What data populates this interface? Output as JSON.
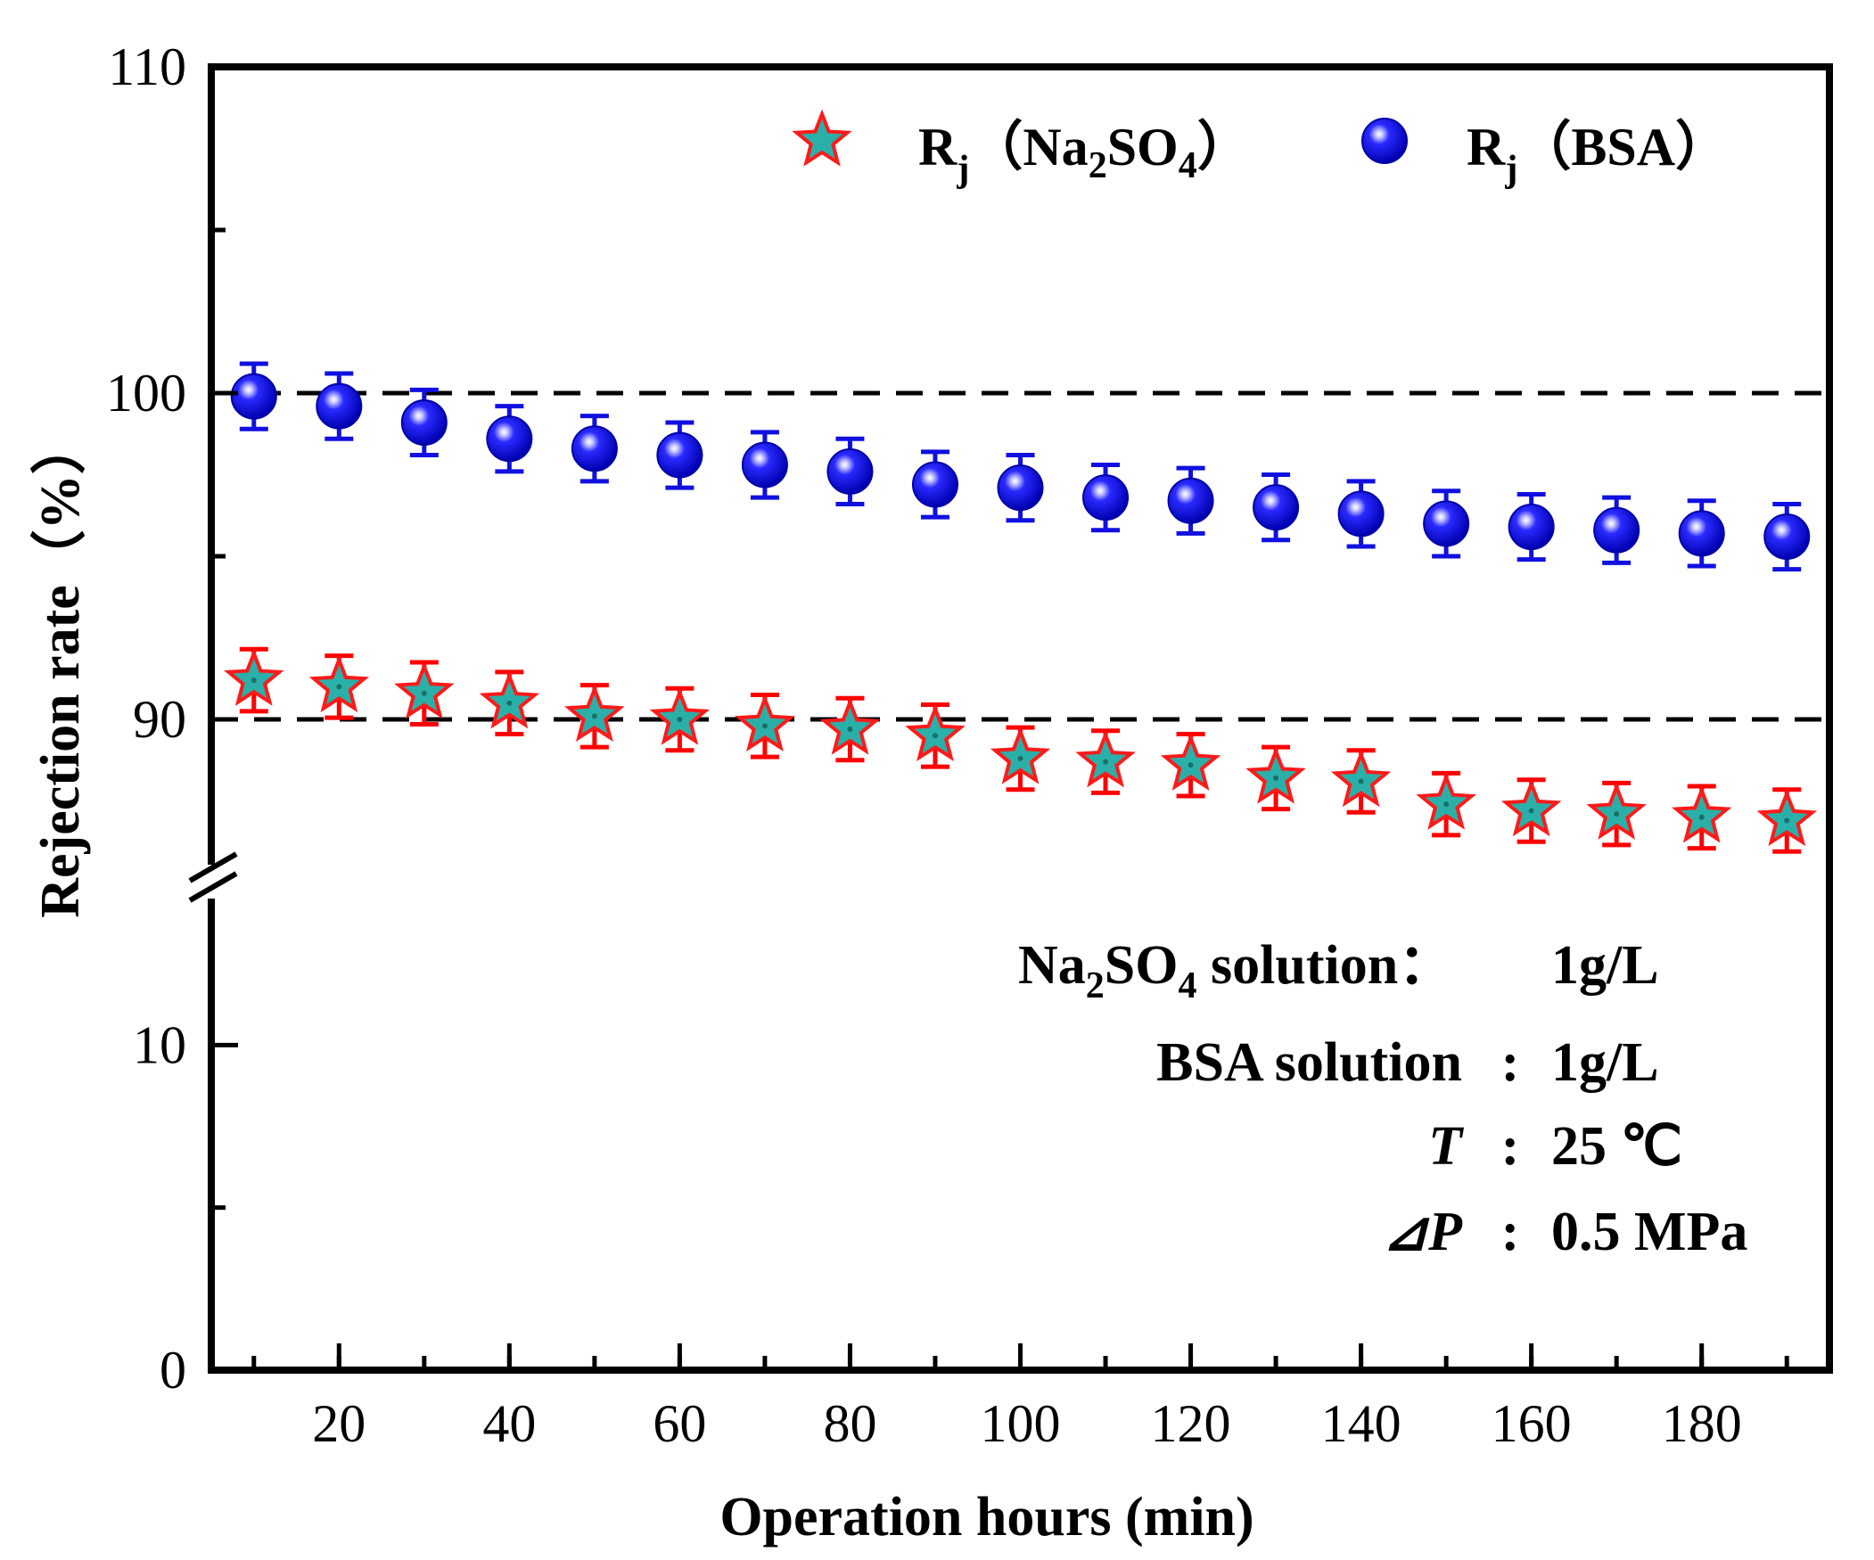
{
  "chart_data": {
    "type": "scatter",
    "title": "",
    "xlabel": "Operation hours (min)",
    "ylabel": "Rejection rate（%）",
    "xlim": [
      5,
      195
    ],
    "ylim_lower": [
      0,
      15
    ],
    "ylim_upper": [
      85,
      110
    ],
    "axis_break": true,
    "x_ticks": [
      "20",
      "40",
      "60",
      "80",
      "100",
      "120",
      "140",
      "160",
      "180"
    ],
    "x_tick_values": [
      20,
      40,
      60,
      80,
      100,
      120,
      140,
      160,
      180
    ],
    "y_ticks": [
      "110",
      "100",
      "90",
      "10",
      "0"
    ],
    "y_tick_values": [
      110,
      100,
      90,
      10,
      0
    ],
    "reference_lines": [
      100,
      90
    ],
    "x": [
      10,
      20,
      30,
      40,
      50,
      60,
      70,
      80,
      90,
      100,
      110,
      120,
      130,
      140,
      150,
      160,
      170,
      180,
      190
    ],
    "series": [
      {
        "name": "Na2SO4",
        "legend_main": "R",
        "legend_sub": "j",
        "legend_paren_open": "（",
        "legend_chem": "Na",
        "legend_chem_sub": "2",
        "legend_chem2": "SO",
        "legend_chem2_sub": "4",
        "legend_paren_close": "）",
        "marker": "star",
        "fill_color": "#2ab0a8",
        "edge_color": "#ff1a1a",
        "error_color": "#ff0000",
        "values": [
          91.2,
          91.0,
          90.8,
          90.5,
          90.1,
          90.0,
          89.8,
          89.7,
          89.5,
          88.8,
          88.7,
          88.6,
          88.2,
          88.1,
          87.4,
          87.2,
          87.1,
          87.0,
          86.9
        ],
        "errors": [
          0.95,
          0.95,
          0.95,
          0.95,
          0.95,
          0.95,
          0.95,
          0.95,
          0.95,
          0.95,
          0.95,
          0.95,
          0.95,
          0.95,
          0.95,
          0.95,
          0.95,
          0.95,
          0.95
        ]
      },
      {
        "name": "BSA",
        "legend_main": "R",
        "legend_sub": "j",
        "legend_text": "（BSA）",
        "marker": "sphere",
        "fill_color": "#0a0ae8",
        "edge_color": "#0000aa",
        "error_color": "#1010e0",
        "values": [
          99.9,
          99.6,
          99.1,
          98.6,
          98.3,
          98.1,
          97.8,
          97.6,
          97.2,
          97.1,
          96.8,
          96.7,
          96.5,
          96.3,
          96.0,
          95.9,
          95.8,
          95.7,
          95.6
        ],
        "errors": [
          1.0,
          1.0,
          1.0,
          1.0,
          1.0,
          1.0,
          1.0,
          1.0,
          1.0,
          1.0,
          1.0,
          1.0,
          1.0,
          1.0,
          1.0,
          1.0,
          1.0,
          1.0,
          1.0
        ]
      }
    ],
    "annotations": {
      "line1_a": "Na",
      "line1_sub1": "2",
      "line1_b": "SO",
      "line1_sub2": "4",
      "line1_c": " solution：",
      "line1_value": "1g/L",
      "line2_label": "BSA solution",
      "line2_colon": ":",
      "line2_value": "1g/L",
      "line3_label": "T",
      "line3_colon": ":",
      "line3_value": "25 ℃",
      "line4_label": "⊿P",
      "line4_colon": ":",
      "line4_value": "0.5 MPa"
    }
  }
}
